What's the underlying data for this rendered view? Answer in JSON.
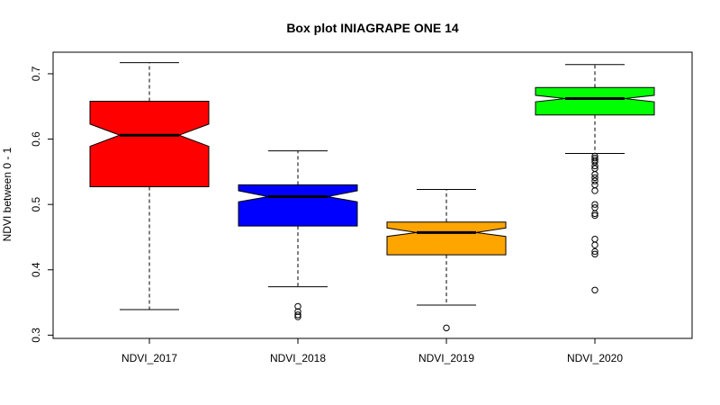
{
  "chart_data": {
    "type": "boxplot",
    "title": "Box plot INIAGRAPE ONE 14",
    "xlabel": "",
    "ylabel": "NDVI between 0 - 1",
    "ylim": [
      0.295,
      0.733
    ],
    "yticks": [
      0.3,
      0.4,
      0.5,
      0.6,
      0.7
    ],
    "ytick_labels": [
      "0.3",
      "0.4",
      "0.5",
      "0.6",
      "0.7"
    ],
    "notched": true,
    "grid": false,
    "legend": "none",
    "categories": [
      "NDVI_2017",
      "NDVI_2018",
      "NDVI_2019",
      "NDVI_2020"
    ],
    "boxes": [
      {
        "name": "NDVI_2017",
        "color": "#ff0000",
        "whisker_low": 0.339,
        "q1": 0.527,
        "median": 0.606,
        "q3": 0.658,
        "whisker_high": 0.717,
        "notch_low": 0.589,
        "notch_high": 0.623,
        "outliers": []
      },
      {
        "name": "NDVI_2018",
        "color": "#0000ff",
        "whisker_low": 0.374,
        "q1": 0.467,
        "median": 0.512,
        "q3": 0.53,
        "whisker_high": 0.582,
        "notch_low": 0.504,
        "notch_high": 0.521,
        "outliers": [
          0.344,
          0.336,
          0.331,
          0.328
        ]
      },
      {
        "name": "NDVI_2019",
        "color": "#ffa500",
        "whisker_low": 0.346,
        "q1": 0.423,
        "median": 0.457,
        "q3": 0.473,
        "whisker_high": 0.523,
        "notch_low": 0.451,
        "notch_high": 0.464,
        "outliers": [
          0.311
        ]
      },
      {
        "name": "NDVI_2020",
        "color": "#00ff00",
        "whisker_low": 0.578,
        "q1": 0.637,
        "median": 0.662,
        "q3": 0.679,
        "whisker_high": 0.714,
        "notch_low": 0.657,
        "notch_high": 0.667,
        "outliers": [
          0.574,
          0.571,
          0.568,
          0.565,
          0.559,
          0.555,
          0.546,
          0.541,
          0.536,
          0.53,
          0.521,
          0.5,
          0.495,
          0.486,
          0.483,
          0.447,
          0.438,
          0.428,
          0.424,
          0.369
        ]
      }
    ]
  }
}
